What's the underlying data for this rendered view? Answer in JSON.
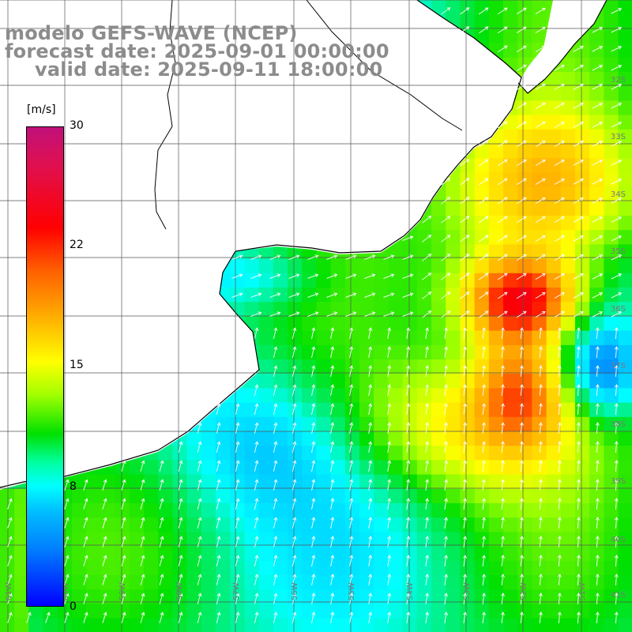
{
  "title": {
    "line1": "modelo GEFS-WAVE (NCEP)",
    "line2": "forecast date: 2025-09-01 00:00:00",
    "line3": "valid date: 2025-09-11 18:00:00"
  },
  "colorbar": {
    "unit": "[m/s]",
    "ticks": [
      "30",
      "22",
      "15",
      "8",
      "0"
    ],
    "range": [
      0,
      30
    ],
    "colors": [
      "#0000ff",
      "#0080ff",
      "#00ffff",
      "#00e000",
      "#a0ff00",
      "#ffff00",
      "#ffa000",
      "#ff0000",
      "#c0107a"
    ]
  },
  "map": {
    "lat_labels": [
      "32S",
      "33S",
      "34S",
      "35S",
      "36S",
      "37S",
      "38S",
      "39S",
      "40S",
      "41S"
    ],
    "lon_labels": [
      "61W",
      "60W",
      "59W",
      "58W",
      "57W",
      "56W",
      "55W",
      "54W",
      "53W",
      "52W",
      "51W"
    ],
    "grid": true,
    "land_color": "#ffffff",
    "arrow_color": "#ffffff",
    "variable": "wind speed and direction"
  }
}
